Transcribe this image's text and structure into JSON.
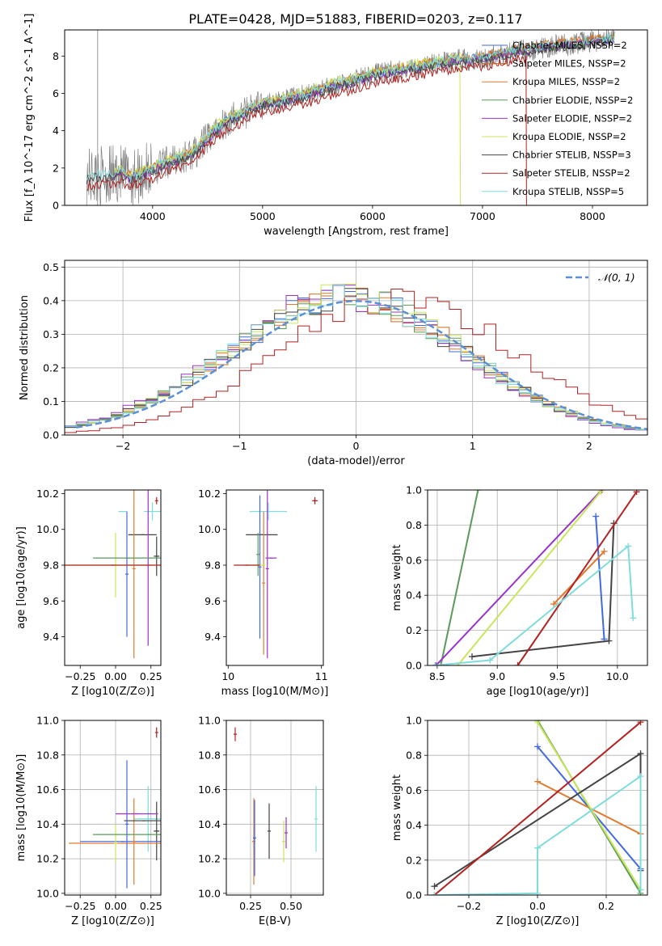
{
  "figure_title": "PLATE=0428, MJD=51883, FIBERID=0203, z=0.117",
  "colors": {
    "chabrier_miles": "#4169e1",
    "salpeter_miles": "#d2691e",
    "kroupa_miles": "#e07b30",
    "chabrier_elodie": "#5a9a5a",
    "salpeter_elodie": "#9932cc",
    "kroupa_elodie": "#c8e65a",
    "chabrier_stelib": "#444444",
    "salpeter_stelib": "#b22222",
    "kroupa_stelib": "#7fdcdc",
    "gaussian": "#5b8fd6",
    "grid": "#b0b0b0"
  },
  "chart_data": [
    {
      "id": "spectrum",
      "type": "line",
      "title": "PLATE=0428, MJD=51883, FIBERID=0203, z=0.117",
      "xlabel": "wavelength [Angstrom, rest frame]",
      "ylabel": "Flux [f_λ 10^-17 erg cm^-2 s^-1 A^-1]",
      "xlim": [
        3200,
        8500
      ],
      "ylim": [
        0,
        9.4
      ],
      "xticks": [
        "4000",
        "5000",
        "6000",
        "7000",
        "8000"
      ],
      "yticks": [
        "0",
        "2",
        "4",
        "6",
        "8"
      ],
      "grid": false,
      "legend_position": "top-right",
      "legend": [
        "Chabrier MILES, N_SSP=2",
        "Salpeter MILES, N_SSP=2",
        "Kroupa MILES, N_SSP=2",
        "Chabrier ELODIE, N_SSP=2",
        "Salpeter ELODIE, N_SSP=2",
        "Kroupa ELODIE, N_SSP=2",
        "Chabrier STELIB, N_SSP=3",
        "Salpeter STELIB, N_SSP=2",
        "Kroupa STELIB, N_SSP=5"
      ],
      "data_anchor_points": {
        "x": [
          3400,
          3500,
          3600,
          3700,
          3800,
          3900,
          4000,
          4100,
          4200,
          4300,
          4400,
          4500,
          4600,
          4700,
          4800,
          4900,
          5000,
          5100,
          5200,
          5300,
          5400,
          5500,
          5600,
          5700,
          5800,
          5900,
          6000,
          6100,
          6200,
          6300,
          6400,
          6500,
          6600,
          6700,
          6800,
          6900,
          7000,
          7100,
          7200,
          7300,
          7400,
          7500,
          7600,
          7700,
          7800,
          7900,
          8000,
          8100,
          8200
        ],
        "model_flux": [
          1.5,
          1.6,
          1.6,
          1.7,
          1.5,
          1.7,
          1.9,
          2.2,
          2.4,
          2.6,
          2.9,
          3.6,
          4.2,
          4.6,
          4.8,
          5.2,
          5.4,
          5.5,
          5.6,
          5.8,
          5.9,
          6.1,
          6.3,
          6.5,
          6.6,
          6.8,
          7.0,
          7.1,
          7.2,
          7.3,
          7.4,
          7.5,
          7.6,
          7.7,
          7.8,
          7.8,
          7.9,
          8.0,
          8.1,
          8.3,
          8.3,
          8.4,
          8.5,
          8.6,
          8.6,
          8.7,
          8.8,
          8.8,
          8.9
        ],
        "salpeter_stelib_range_end": 7400,
        "kroupa_elodie_range_end": 6800
      }
    },
    {
      "id": "residuals",
      "type": "line",
      "xlabel": "(data-model)/error",
      "ylabel": "Normed distribution",
      "xlim": [
        -2.5,
        2.5
      ],
      "ylim": [
        0,
        0.52
      ],
      "xticks": [
        "−2",
        "−1",
        "0",
        "1",
        "2"
      ],
      "yticks": [
        "0.0",
        "0.1",
        "0.2",
        "0.3",
        "0.4",
        "0.5"
      ],
      "grid": true,
      "legend_position": "top-right",
      "legend": [
        "N(0, 1)"
      ],
      "series": [
        {
          "name": "N(0, 1)",
          "mean": 0,
          "sigma": 1
        }
      ]
    },
    {
      "id": "age-vs-Z",
      "type": "scatter",
      "xlabel": "Z [log10(Z/Z⊙)]",
      "ylabel": "age [log10(age/yr)]",
      "xlim": [
        -0.36,
        0.32
      ],
      "ylim": [
        9.24,
        10.22
      ],
      "xticks": [
        "−0.25",
        "0.00",
        "0.25"
      ],
      "yticks": [
        "9.4",
        "9.6",
        "9.8",
        "10.0",
        "10.2"
      ],
      "grid": false,
      "points": [
        {
          "x": 0.29,
          "y": 10.16,
          "xerr": 0.003,
          "yerr": 0.02,
          "c": "salpeter_stelib"
        },
        {
          "x": 0.26,
          "y": 10.1,
          "xerr": 0.06,
          "yerr": 0.05,
          "c": "kroupa_stelib"
        },
        {
          "x": 0.05,
          "y": 10.1,
          "xerr": 0.03,
          "yerr": 0.0,
          "c": "kroupa_stelib"
        },
        {
          "x": 0.29,
          "y": 9.85,
          "xerr": 0.02,
          "yerr": 0.11,
          "c": "chabrier_stelib"
        },
        {
          "x": 0.19,
          "y": 9.97,
          "xerr": 0.1,
          "yerr": 0.0,
          "c": "chabrier_stelib"
        },
        {
          "x": 0.08,
          "y": 9.75,
          "xerr": 0.0,
          "yerr": 0.35,
          "c": "chabrier_miles"
        },
        {
          "x": 0.13,
          "y": 9.78,
          "xerr": 0.0,
          "yerr": 0.5,
          "c": "kroupa_miles"
        },
        {
          "x": 0.23,
          "y": 9.8,
          "xerr": 0.0,
          "yerr": 0.45,
          "c": "salpeter_elodie"
        },
        {
          "x": 0.0,
          "y": 9.8,
          "xerr": 0.35,
          "yerr": 0.18,
          "c": "kroupa_elodie"
        },
        {
          "x": 0.08,
          "y": 9.84,
          "xerr": 0.24,
          "yerr": 0.0,
          "c": "chabrier_elodie"
        },
        {
          "x": -0.02,
          "y": 9.8,
          "xerr": 0.34,
          "yerr": 0.0,
          "c": "salpeter_stelib"
        }
      ]
    },
    {
      "id": "age-vs-mass",
      "type": "scatter",
      "xlabel": "mass [log10(M/M⊙)]",
      "ylabel": "",
      "xlim": [
        9.98,
        11.02
      ],
      "ylim": [
        9.24,
        10.22
      ],
      "xticks": [
        "10",
        "11"
      ],
      "yticks": [
        "9.4",
        "9.6",
        "9.8",
        "10.0",
        "10.2"
      ],
      "grid": false,
      "points": [
        {
          "x": 10.93,
          "y": 10.16,
          "xerr": 0.03,
          "yerr": 0.02,
          "c": "salpeter_stelib"
        },
        {
          "x": 10.43,
          "y": 10.1,
          "xerr": 0.2,
          "yerr": 0.05,
          "c": "kroupa_stelib"
        },
        {
          "x": 10.36,
          "y": 9.97,
          "xerr": 0.17,
          "yerr": 0.0,
          "c": "chabrier_stelib"
        },
        {
          "x": 10.34,
          "y": 9.79,
          "xerr": 0.0,
          "yerr": 0.4,
          "c": "chabrier_miles"
        },
        {
          "x": 10.38,
          "y": 9.7,
          "xerr": 0.0,
          "yerr": 0.4,
          "c": "kroupa_miles"
        },
        {
          "x": 10.42,
          "y": 9.78,
          "xerr": 0.0,
          "yerr": 0.5,
          "c": "salpeter_elodie"
        },
        {
          "x": 10.46,
          "y": 9.84,
          "xerr": 0.06,
          "yerr": 0.0,
          "c": "salpeter_elodie"
        },
        {
          "x": 10.29,
          "y": 9.8,
          "xerr": 0.11,
          "yerr": 0.0,
          "c": "kroupa_elodie"
        },
        {
          "x": 10.32,
          "y": 9.86,
          "xerr": 0.0,
          "yerr": 0.12,
          "c": "chabrier_elodie"
        },
        {
          "x": 10.2,
          "y": 9.8,
          "xerr": 0.14,
          "yerr": 0.0,
          "c": "salpeter_stelib"
        }
      ]
    },
    {
      "id": "massweight-vs-age",
      "type": "line",
      "xlabel": "age [log10(age/yr)]",
      "ylabel": "mass weight",
      "xlim": [
        8.42,
        10.25
      ],
      "ylim": [
        0,
        1.0
      ],
      "xticks": [
        "8.5",
        "9.0",
        "9.5",
        "10.0"
      ],
      "yticks": [
        "0.0",
        "0.2",
        "0.4",
        "0.6",
        "0.8",
        "1.0"
      ],
      "grid": true,
      "series": [
        {
          "c": "chabrier_miles",
          "x": [
            9.82,
            9.89
          ],
          "y": [
            0.85,
            0.15
          ]
        },
        {
          "c": "kroupa_miles",
          "x": [
            9.47,
            9.89
          ],
          "y": [
            0.35,
            0.65
          ]
        },
        {
          "c": "chabrier_elodie",
          "x": [
            8.53,
            8.84
          ],
          "y": [
            0.0,
            1.0
          ]
        },
        {
          "c": "salpeter_elodie",
          "x": [
            8.49,
            9.87
          ],
          "y": [
            0.0,
            1.0
          ]
        },
        {
          "c": "kroupa_elodie",
          "x": [
            8.67,
            9.86
          ],
          "y": [
            0.0,
            0.99
          ]
        },
        {
          "c": "chabrier_stelib",
          "x": [
            8.79,
            9.93,
            9.97
          ],
          "y": [
            0.05,
            0.14,
            0.81
          ]
        },
        {
          "c": "salpeter_stelib",
          "x": [
            9.17,
            10.16
          ],
          "y": [
            0.0,
            0.99
          ]
        },
        {
          "c": "kroupa_stelib",
          "x": [
            8.48,
            8.94,
            10.09,
            10.13
          ],
          "y": [
            0.0,
            0.03,
            0.68,
            0.27
          ]
        }
      ]
    },
    {
      "id": "mass-vs-Z",
      "type": "scatter",
      "xlabel": "Z [log10(Z/Z⊙)]",
      "ylabel": "mass [log10(M/M⊙)]",
      "xlim": [
        -0.36,
        0.32
      ],
      "ylim": [
        9.99,
        11.0
      ],
      "xticks": [
        "−0.25",
        "0.00",
        "0.25"
      ],
      "yticks": [
        "10.0",
        "10.2",
        "10.4",
        "10.6",
        "10.8",
        "11.0"
      ],
      "grid": true,
      "points": [
        {
          "x": 0.29,
          "y": 10.93,
          "xerr": 0.003,
          "yerr": 0.03,
          "c": "salpeter_stelib"
        },
        {
          "x": 0.23,
          "y": 10.43,
          "xerr": 0.1,
          "yerr": 0.19,
          "c": "kroupa_stelib"
        },
        {
          "x": 0.29,
          "y": 10.36,
          "xerr": 0.02,
          "yerr": 0.17,
          "c": "chabrier_stelib"
        },
        {
          "x": 0.05,
          "y": 10.3,
          "xerr": 0.3,
          "yerr": 0.0,
          "c": "chabrier_miles"
        },
        {
          "x": 0.13,
          "y": 10.3,
          "xerr": 0.0,
          "yerr": 0.25,
          "c": "kroupa_miles"
        },
        {
          "x": 0.0,
          "y": 10.29,
          "xerr": 0.33,
          "yerr": 0.0,
          "c": "kroupa_miles"
        },
        {
          "x": 0.08,
          "y": 10.4,
          "xerr": 0.0,
          "yerr": 0.37,
          "c": "chabrier_miles"
        },
        {
          "x": 0.15,
          "y": 10.46,
          "xerr": 0.15,
          "yerr": 0.0,
          "c": "salpeter_elodie"
        },
        {
          "x": 0.0,
          "y": 10.29,
          "xerr": 0.0,
          "yerr": 0.11,
          "c": "kroupa_elodie"
        },
        {
          "x": 0.08,
          "y": 10.34,
          "xerr": 0.24,
          "yerr": 0.0,
          "c": "chabrier_elodie"
        },
        {
          "x": 0.2,
          "y": 10.42,
          "xerr": 0.14,
          "yerr": 0.0,
          "c": "chabrier_stelib"
        }
      ]
    },
    {
      "id": "mass-vs-EBV",
      "type": "scatter",
      "xlabel": "E(B-V)",
      "ylabel": "",
      "xlim": [
        0.1,
        0.7
      ],
      "ylim": [
        9.99,
        11.0
      ],
      "xticks": [
        "0.25",
        "0.50"
      ],
      "yticks": [
        "10.0",
        "10.2",
        "10.4",
        "10.6",
        "10.8",
        "11.0"
      ],
      "grid": true,
      "points": [
        {
          "x": 0.155,
          "y": 10.92,
          "xerr": 0.0,
          "yerr": 0.04,
          "c": "salpeter_stelib"
        },
        {
          "x": 0.27,
          "y": 10.3,
          "xerr": 0.0,
          "yerr": 0.25,
          "c": "kroupa_miles"
        },
        {
          "x": 0.275,
          "y": 10.32,
          "xerr": 0.0,
          "yerr": 0.22,
          "c": "chabrier_miles"
        },
        {
          "x": 0.365,
          "y": 10.36,
          "xerr": 0.0,
          "yerr": 0.16,
          "c": "chabrier_stelib"
        },
        {
          "x": 0.455,
          "y": 10.3,
          "xerr": 0.0,
          "yerr": 0.12,
          "c": "kroupa_elodie"
        },
        {
          "x": 0.47,
          "y": 10.35,
          "xerr": 0.0,
          "yerr": 0.09,
          "c": "salpeter_elodie"
        },
        {
          "x": 0.655,
          "y": 10.43,
          "xerr": 0.0,
          "yerr": 0.19,
          "c": "kroupa_stelib"
        }
      ]
    },
    {
      "id": "massweight-vs-Z",
      "type": "line",
      "xlabel": "Z [log10(Z/Z⊙)]",
      "ylabel": "mass weight",
      "xlim": [
        -0.32,
        0.32
      ],
      "ylim": [
        0,
        1.0
      ],
      "xticks": [
        "−0.2",
        "0.0",
        "0.2"
      ],
      "yticks": [
        "0.0",
        "0.2",
        "0.4",
        "0.6",
        "0.8",
        "1.0"
      ],
      "grid": true,
      "series": [
        {
          "c": "chabrier_miles",
          "x": [
            0.0,
            0.3
          ],
          "y": [
            0.85,
            0.15
          ]
        },
        {
          "c": "kroupa_miles",
          "x": [
            0.0,
            0.3
          ],
          "y": [
            0.65,
            0.35
          ]
        },
        {
          "c": "chabrier_elodie",
          "x": [
            0.0,
            0.3
          ],
          "y": [
            1.0,
            0.01
          ]
        },
        {
          "c": "kroupa_elodie",
          "x": [
            0.0,
            0.3
          ],
          "y": [
            0.99,
            0.03
          ]
        },
        {
          "c": "chabrier_stelib",
          "x": [
            -0.3,
            0.3,
            0.3
          ],
          "y": [
            0.05,
            0.81,
            0.14
          ]
        },
        {
          "c": "salpeter_stelib",
          "x": [
            -0.3,
            0.3
          ],
          "y": [
            0.0,
            0.99
          ]
        },
        {
          "c": "kroupa_stelib",
          "x": [
            -0.3,
            0.0,
            0.0,
            0.3,
            0.3
          ],
          "y": [
            0.0,
            0.01,
            0.27,
            0.68,
            0.03
          ]
        }
      ]
    }
  ]
}
